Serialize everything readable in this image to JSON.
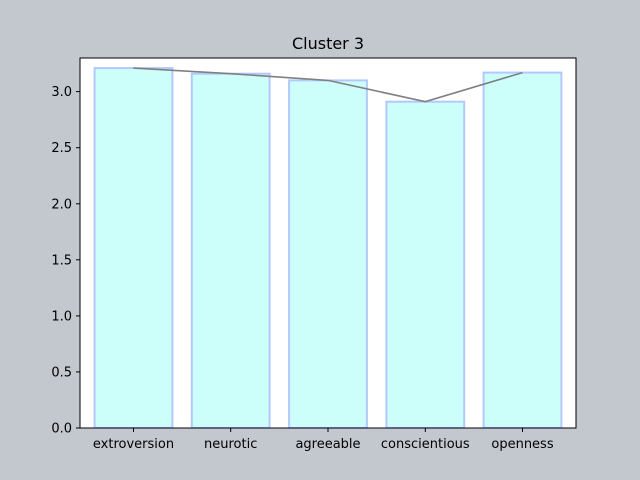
{
  "chart_data": {
    "type": "bar",
    "title": "Cluster 3",
    "xlabel": "",
    "ylabel": "",
    "categories": [
      "extroversion",
      "neurotic",
      "agreeable",
      "conscientious",
      "openness"
    ],
    "values": [
      3.21,
      3.16,
      3.1,
      2.91,
      3.17
    ],
    "line_values": [
      3.21,
      3.16,
      3.1,
      2.91,
      3.17
    ],
    "ylim": [
      0,
      3.3
    ],
    "yticks": [
      0.0,
      0.5,
      1.0,
      1.5,
      2.0,
      2.5,
      3.0
    ],
    "ytick_labels": [
      "0.0",
      "0.5",
      "1.0",
      "1.5",
      "2.0",
      "2.5",
      "3.0"
    ],
    "grid": false,
    "colors": {
      "figure_bg": "#c3c7ce",
      "axes_bg": "#ffffff",
      "bar_fill": "#ccfffa",
      "bar_edge": "#b3c8ff",
      "line": "#808080",
      "axis": "#000000"
    }
  }
}
